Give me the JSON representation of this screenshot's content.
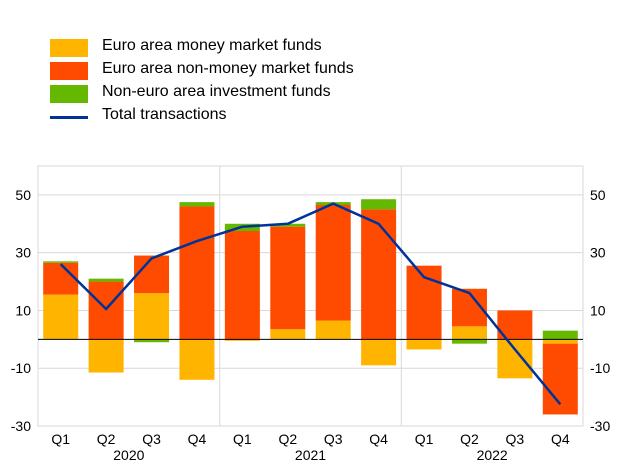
{
  "chart_data": {
    "type": "bar",
    "stacked": true,
    "categories": [
      "Q1",
      "Q2",
      "Q3",
      "Q4",
      "Q1",
      "Q2",
      "Q3",
      "Q4",
      "Q1",
      "Q2",
      "Q3",
      "Q4"
    ],
    "years": [
      "2020",
      "2021",
      "2022"
    ],
    "series": [
      {
        "name": "Euro area money market funds",
        "color": "#ffb400",
        "values": [
          15.5,
          -11.5,
          16,
          -14,
          -0.5,
          3.5,
          6.5,
          -9,
          -3.5,
          4.5,
          -13.5,
          -1.5
        ]
      },
      {
        "name": "Euro area non-money market funds",
        "color": "#ff4b00",
        "values": [
          11,
          20,
          13,
          46,
          37.5,
          35.5,
          40,
          45,
          25.5,
          13,
          10,
          -24.5
        ]
      },
      {
        "name": "Non-euro area investment funds",
        "color": "#65b800",
        "values": [
          0.5,
          1,
          -1,
          1.5,
          2.5,
          1,
          1,
          3.5,
          0,
          -1.5,
          0,
          3
        ]
      }
    ],
    "line": {
      "name": "Total transactions",
      "color": "#003299",
      "values": [
        26,
        10.5,
        28,
        34,
        39,
        40,
        47,
        40,
        21.5,
        16,
        -3.5,
        -22.5
      ]
    },
    "ylim": [
      -30,
      60
    ],
    "yticks": [
      -30,
      -10,
      10,
      30,
      50
    ],
    "grid": true,
    "legend_position": "top-left"
  }
}
